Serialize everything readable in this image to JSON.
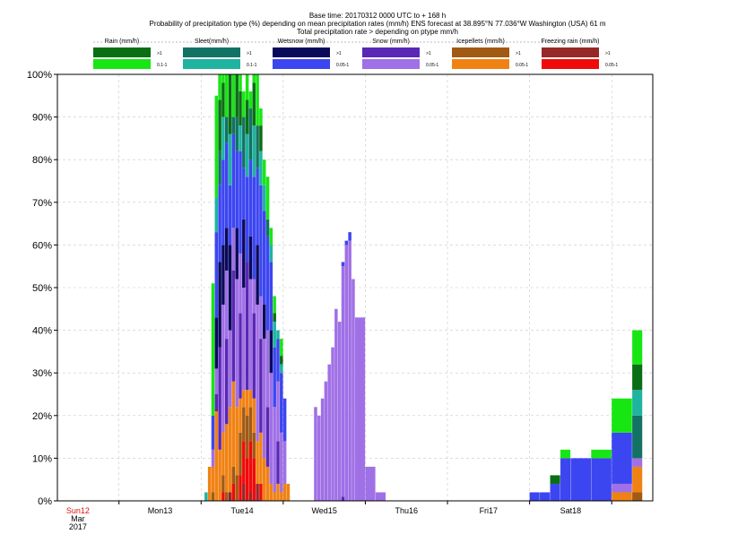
{
  "chart_data": {
    "type": "bar",
    "stacked": true,
    "title_lines": [
      "Base time: 20170312 0000 UTC to + 168 h",
      "Probability of precipitation type (%) depending on mean precipitation rates (mm/h) ENS forecast at 38.895°N  77.036°W Washington (USA) 61  m",
      "Total precipitation rate > depending on ptype mm/h"
    ],
    "legend": {
      "placement": "top",
      "groups": [
        {
          "name": "Rain (mm/h)",
          "high_label": ">1",
          "low_label": "0.1-1",
          "high_color": "#0a6e14",
          "low_color": "#18e614"
        },
        {
          "name": "Sleet(mm/h)",
          "high_label": ">1",
          "low_label": "0.1-1",
          "high_color": "#127264",
          "low_color": "#1eb4a0"
        },
        {
          "name": "Wetsnow (mm/h)",
          "high_label": ">1",
          "low_label": "0.05-1",
          "high_color": "#0a0a5a",
          "low_color": "#3c46f0"
        },
        {
          "name": "Snow (mm/h)",
          "high_label": ">1",
          "low_label": "0.05-1",
          "high_color": "#5a28b4",
          "low_color": "#a070e6"
        },
        {
          "name": "Icepellets (mm/h)",
          "high_label": ">1",
          "low_label": "0.05-1",
          "high_color": "#a05a14",
          "low_color": "#f08214"
        },
        {
          "name": "Freezing rain (mm/h)",
          "high_label": ">1",
          "low_label": "0.05-1",
          "high_color": "#962828",
          "low_color": "#f00a0a"
        }
      ]
    },
    "y_axis": {
      "min": 0,
      "max": 100,
      "ticks": [
        "0%",
        "10%",
        "20%",
        "30%",
        "40%",
        "50%",
        "60%",
        "70%",
        "80%",
        "90%",
        "100%"
      ],
      "grid": true
    },
    "x_axis": {
      "unit": "forecast hour",
      "min": -6,
      "max": 168,
      "day_ticks": [
        {
          "hour": 0,
          "label": "Sun12",
          "sub1": "Mar",
          "sub2": "2017",
          "color": "#e01010"
        },
        {
          "hour": 24,
          "label": "Mon13",
          "color": "#000000"
        },
        {
          "hour": 48,
          "label": "Tue14",
          "color": "#000000"
        },
        {
          "hour": 72,
          "label": "Wed15",
          "color": "#000000"
        },
        {
          "hour": 96,
          "label": "Thu16",
          "color": "#000000"
        },
        {
          "hour": 120,
          "label": "Fri17",
          "color": "#000000"
        },
        {
          "hour": 144,
          "label": "Sat18",
          "color": "#000000"
        }
      ],
      "grid_hours": [
        12,
        36,
        60,
        84,
        108,
        132,
        156
      ]
    },
    "series_order": [
      "freezing_hi",
      "freezing_lo",
      "ice_hi",
      "ice_lo",
      "snow_hi",
      "snow_lo",
      "wetsnow_hi",
      "wetsnow_lo",
      "sleet_hi",
      "sleet_lo",
      "rain_hi",
      "rain_lo"
    ],
    "series_colors": {
      "rain_hi": "#0a6e14",
      "rain_lo": "#18e614",
      "sleet_hi": "#127264",
      "sleet_lo": "#1eb4a0",
      "wetsnow_hi": "#0a0a5a",
      "wetsnow_lo": "#3c46f0",
      "snow_hi": "#5a28b4",
      "snow_lo": "#a070e6",
      "ice_hi": "#a05a14",
      "ice_lo": "#f08214",
      "freezing_hi": "#962828",
      "freezing_lo": "#f00a0a"
    },
    "bars": [
      {
        "x": 37,
        "w": 1,
        "v": {
          "ice_hi": 0,
          "ice_lo": 0,
          "sleet_lo": 2
        }
      },
      {
        "x": 38,
        "w": 1,
        "v": {
          "ice_lo": 8
        }
      },
      {
        "x": 39,
        "w": 1,
        "v": {
          "ice_hi": 2,
          "ice_lo": 6,
          "snow_lo": 4,
          "wetsnow_lo": 8,
          "rain_lo": 31
        }
      },
      {
        "x": 40,
        "w": 1,
        "v": {
          "ice_lo": 21,
          "snow_lo": 6,
          "snow_hi": 4,
          "wetsnow_hi": 12,
          "wetsnow_lo": 20,
          "sleet_lo": 8,
          "rain_lo": 24
        }
      },
      {
        "x": 41,
        "w": 1,
        "v": {
          "ice_lo": 12,
          "snow_hi": 24,
          "wetsnow_hi": 20,
          "wetsnow_lo": 18,
          "sleet_hi": 8,
          "rain_hi": 12,
          "rain_lo": 6
        }
      },
      {
        "x": 42,
        "w": 1,
        "v": {
          "ice_hi": 4,
          "ice_lo": 10,
          "freezing_lo": 2,
          "snow_lo": 30,
          "wetsnow_hi": 14,
          "wetsnow_lo": 20,
          "sleet_lo": 10,
          "rain_hi": 8,
          "rain_lo": 2
        }
      },
      {
        "x": 43,
        "w": 1,
        "v": {
          "ice_hi": 2,
          "ice_lo": 16,
          "snow_hi": 20,
          "snow_lo": 16,
          "wetsnow_hi": 10,
          "wetsnow_lo": 20,
          "sleet_hi": 6,
          "rain_lo": 10
        }
      },
      {
        "x": 44,
        "w": 1,
        "v": {
          "ice_lo": 20,
          "freezing_hi": 2,
          "snow_lo": 18,
          "wetsnow_hi": 20,
          "wetsnow_lo": 14,
          "sleet_lo": 12,
          "rain_hi": 14
        }
      },
      {
        "x": 45,
        "w": 1,
        "v": {
          "freezing_lo": 4,
          "ice_hi": 4,
          "ice_lo": 20,
          "snow_hi": 26,
          "snow_lo": 10,
          "wetsnow_lo": 22,
          "sleet_hi": 4,
          "rain_lo": 10
        }
      },
      {
        "x": 46,
        "w": 1,
        "v": {
          "ice_hi": 6,
          "ice_lo": 16,
          "snow_lo": 30,
          "wetsnow_hi": 12,
          "wetsnow_lo": 18,
          "sleet_hi": 8,
          "rain_hi": 10
        }
      },
      {
        "x": 47,
        "w": 1,
        "v": {
          "freezing_lo": 6,
          "ice_hi": 10,
          "ice_lo": 8,
          "snow_hi": 20,
          "snow_lo": 14,
          "wetsnow_lo": 24,
          "sleet_lo": 6,
          "rain_hi": 8,
          "rain_lo": 4
        }
      },
      {
        "x": 48,
        "w": 1,
        "v": {
          "freezing_hi": 4,
          "freezing_lo": 10,
          "ice_hi": 8,
          "ice_lo": 4,
          "snow_lo": 24,
          "wetsnow_hi": 16,
          "wetsnow_lo": 12,
          "sleet_hi": 12,
          "rain_lo": 6
        }
      },
      {
        "x": 49,
        "w": 1,
        "v": {
          "freezing_lo": 10,
          "ice_hi": 10,
          "ice_lo": 6,
          "snow_hi": 30,
          "wetsnow_lo": 20,
          "sleet_lo": 10,
          "rain_hi": 8,
          "rain_lo": 6
        }
      },
      {
        "x": 50,
        "w": 1,
        "v": {
          "freezing_hi": 2,
          "freezing_lo": 12,
          "ice_hi": 8,
          "ice_lo": 4,
          "snow_lo": 26,
          "wetsnow_hi": 10,
          "wetsnow_lo": 18,
          "sleet_hi": 12,
          "rain_lo": 4
        }
      },
      {
        "x": 51,
        "w": 1,
        "v": {
          "freezing_lo": 10,
          "ice_hi": 6,
          "ice_lo": 8,
          "snow_hi": 20,
          "snow_lo": 8,
          "wetsnow_lo": 24,
          "sleet_lo": 12,
          "rain_hi": 10,
          "rain_lo": 2
        }
      },
      {
        "x": 52,
        "w": 1,
        "v": {
          "freezing_hi": 4,
          "ice_lo": 10,
          "snow_lo": 32,
          "wetsnow_hi": 14,
          "wetsnow_lo": 18,
          "sleet_hi": 10,
          "rain_lo": 12
        }
      },
      {
        "x": 53,
        "w": 1,
        "v": {
          "freezing_lo": 4,
          "ice_lo": 12,
          "snow_hi": 22,
          "snow_lo": 10,
          "wetsnow_lo": 26,
          "sleet_lo": 8,
          "rain_hi": 6,
          "rain_lo": 4
        }
      },
      {
        "x": 54,
        "w": 1,
        "v": {
          "ice_lo": 10,
          "snow_lo": 28,
          "wetsnow_hi": 8,
          "wetsnow_lo": 22,
          "sleet_lo": 6,
          "rain_lo": 6
        }
      },
      {
        "x": 55,
        "w": 1,
        "v": {
          "ice_lo": 8,
          "snow_hi": 14,
          "snow_lo": 18,
          "wetsnow_lo": 22,
          "sleet_hi": 4,
          "rain_lo": 10
        }
      },
      {
        "x": 56,
        "w": 1,
        "v": {
          "ice_lo": 4,
          "snow_lo": 26,
          "wetsnow_hi": 10,
          "wetsnow_lo": 16,
          "sleet_lo": 4,
          "rain_lo": 4
        }
      },
      {
        "x": 57,
        "w": 1,
        "v": {
          "ice_lo": 2,
          "snow_lo": 20,
          "wetsnow_lo": 14,
          "sleet_lo": 6,
          "rain_hi": 2,
          "rain_lo": 4
        }
      },
      {
        "x": 58,
        "w": 1,
        "v": {
          "ice_lo": 4,
          "snow_hi": 10,
          "snow_lo": 14,
          "wetsnow_lo": 10,
          "sleet_lo": 2
        }
      },
      {
        "x": 59,
        "w": 1,
        "v": {
          "ice_lo": 2,
          "snow_lo": 14,
          "wetsnow_lo": 14,
          "sleet_lo": 2,
          "rain_hi": 2,
          "rain_lo": 4
        }
      },
      {
        "x": 60,
        "w": 1,
        "v": {
          "ice_lo": 4,
          "snow_lo": 10,
          "wetsnow_lo": 10
        }
      },
      {
        "x": 61,
        "w": 1,
        "v": {
          "ice_lo": 4
        }
      },
      {
        "x": 69,
        "w": 1,
        "v": {
          "snow_lo": 22
        }
      },
      {
        "x": 70,
        "w": 1,
        "v": {
          "snow_lo": 20
        }
      },
      {
        "x": 71,
        "w": 1,
        "v": {
          "snow_lo": 24
        }
      },
      {
        "x": 72,
        "w": 1,
        "v": {
          "snow_lo": 28
        }
      },
      {
        "x": 73,
        "w": 1,
        "v": {
          "snow_lo": 32
        }
      },
      {
        "x": 74,
        "w": 1,
        "v": {
          "snow_lo": 36
        }
      },
      {
        "x": 75,
        "w": 1,
        "v": {
          "snow_lo": 45
        }
      },
      {
        "x": 76,
        "w": 1,
        "v": {
          "snow_lo": 42
        }
      },
      {
        "x": 77,
        "w": 1,
        "v": {
          "snow_lo": 54,
          "snow_hi": 1,
          "wetsnow_lo": 1
        }
      },
      {
        "x": 78,
        "w": 1,
        "v": {
          "snow_lo": 60,
          "wetsnow_lo": 1
        }
      },
      {
        "x": 79,
        "w": 1,
        "v": {
          "snow_lo": 61,
          "wetsnow_lo": 2
        }
      },
      {
        "x": 80,
        "w": 1,
        "v": {
          "snow_lo": 52
        }
      },
      {
        "x": 81,
        "w": 3,
        "v": {
          "snow_lo": 43
        }
      },
      {
        "x": 84,
        "w": 3,
        "v": {
          "snow_lo": 8
        }
      },
      {
        "x": 87,
        "w": 3,
        "v": {
          "snow_lo": 2
        }
      },
      {
        "x": 132,
        "w": 3,
        "v": {
          "wetsnow_lo": 2
        }
      },
      {
        "x": 135,
        "w": 3,
        "v": {
          "wetsnow_lo": 2
        }
      },
      {
        "x": 138,
        "w": 3,
        "v": {
          "wetsnow_lo": 4,
          "rain_hi": 2
        }
      },
      {
        "x": 141,
        "w": 3,
        "v": {
          "wetsnow_lo": 10,
          "rain_lo": 2
        }
      },
      {
        "x": 144,
        "w": 6,
        "v": {
          "wetsnow_lo": 10
        }
      },
      {
        "x": 150,
        "w": 6,
        "v": {
          "wetsnow_lo": 10,
          "rain_lo": 2
        }
      },
      {
        "x": 156,
        "w": 6,
        "v": {
          "ice_lo": 2,
          "snow_lo": 2,
          "wetsnow_lo": 12,
          "rain_lo": 8
        }
      },
      {
        "x": 162,
        "w": 3,
        "v": {
          "ice_hi": 2,
          "ice_lo": 6,
          "snow_lo": 2,
          "wetsnow_lo": 0,
          "sleet_hi": 10,
          "sleet_lo": 6,
          "rain_hi": 6,
          "rain_lo": 8
        }
      }
    ]
  }
}
